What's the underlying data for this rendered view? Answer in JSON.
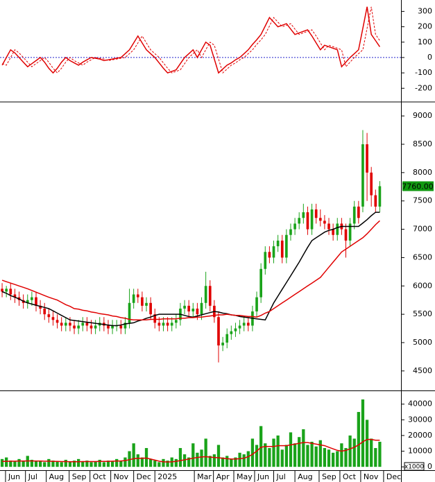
{
  "x_axis": {
    "xlim": [
      -0.5,
      94
    ],
    "xticks": [
      {
        "value": 0.8,
        "label": "Jun"
      },
      {
        "value": 5.5,
        "label": "Jul"
      },
      {
        "value": 10.4,
        "label": "Aug"
      },
      {
        "value": 15.8,
        "label": "Sep"
      },
      {
        "value": 20.7,
        "label": "Oct"
      },
      {
        "value": 25.6,
        "label": "Nov"
      },
      {
        "value": 31,
        "label": "Dec"
      },
      {
        "value": 36,
        "label": "2025"
      },
      {
        "value": 45.3,
        "label": "Mar"
      },
      {
        "value": 49.8,
        "label": "Apr"
      },
      {
        "value": 54.6,
        "label": "May"
      },
      {
        "value": 59.5,
        "label": "Jun"
      },
      {
        "value": 64,
        "label": "Jul"
      },
      {
        "value": 69,
        "label": "Aug"
      },
      {
        "value": 74.7,
        "label": "Sep"
      },
      {
        "value": 79.6,
        "label": "Oct"
      },
      {
        "value": 84.5,
        "label": "Nov"
      },
      {
        "value": 89.9,
        "label": "Dec"
      }
    ]
  },
  "chart_data": [
    {
      "type": "line",
      "ylim": [
        -280,
        365
      ],
      "yticks": [
        -200,
        -100,
        0,
        100,
        200,
        300
      ],
      "hline": 0,
      "hline_color": "#2222cc",
      "series": [
        {
          "color": "#e00000",
          "dash": false,
          "values": [
            -50,
            0,
            50,
            30,
            0,
            -30,
            -60,
            -40,
            -20,
            0,
            -30,
            -70,
            -100,
            -70,
            -30,
            0,
            -20,
            -35,
            -50,
            -30,
            -15,
            0,
            -5,
            -10,
            -20,
            -15,
            -10,
            -5,
            0,
            25,
            50,
            95,
            140,
            95,
            50,
            25,
            0,
            -35,
            -70,
            -100,
            -90,
            -80,
            -40,
            0,
            25,
            50,
            0,
            50,
            100,
            80,
            -10,
            -100,
            -75,
            -50,
            -35,
            -15,
            0,
            25,
            50,
            85,
            115,
            150,
            205,
            260,
            230,
            200,
            210,
            220,
            185,
            150,
            160,
            170,
            180,
            140,
            95,
            50,
            80,
            70,
            60,
            50,
            -60,
            -30,
            0,
            25,
            50,
            190,
            330,
            150,
            110,
            70
          ]
        },
        {
          "color": "#e00000",
          "dash": true,
          "values": [
            -40,
            -50,
            0,
            50,
            30,
            0,
            -30,
            -60,
            -40,
            -20,
            0,
            -30,
            -70,
            -100,
            -70,
            -30,
            0,
            -20,
            -35,
            -50,
            -30,
            -15,
            0,
            -5,
            -10,
            -20,
            -15,
            -10,
            -5,
            0,
            25,
            50,
            95,
            140,
            95,
            50,
            25,
            0,
            -35,
            -70,
            -100,
            -90,
            -80,
            -40,
            0,
            25,
            50,
            0,
            50,
            100,
            80,
            -10,
            -100,
            -75,
            -50,
            -35,
            -15,
            0,
            25,
            50,
            85,
            115,
            150,
            205,
            260,
            230,
            200,
            210,
            220,
            185,
            150,
            160,
            170,
            180,
            140,
            95,
            50,
            80,
            70,
            60,
            50,
            -60,
            -30,
            0,
            25,
            50,
            190,
            330,
            150,
            110
          ]
        }
      ]
    },
    {
      "type": "candlestick",
      "ylim": [
        4180,
        9210
      ],
      "yticks": [
        4500,
        5000,
        5500,
        6000,
        6500,
        7000,
        7500,
        8000,
        8500,
        9000
      ],
      "up_color": "#1aa31a",
      "down_color": "#e00000",
      "open": [
        5950,
        5900,
        5950,
        5850,
        5800,
        5750,
        5700,
        5750,
        5800,
        5650,
        5600,
        5500,
        5450,
        5400,
        5350,
        5300,
        5350,
        5300,
        5250,
        5300,
        5350,
        5300,
        5250,
        5300,
        5350,
        5300,
        5250,
        5300,
        5300,
        5250,
        5350,
        5700,
        5850,
        5800,
        5650,
        5700,
        5500,
        5350,
        5300,
        5350,
        5300,
        5350,
        5400,
        5600,
        5650,
        5550,
        5600,
        5500,
        5700,
        6000,
        5650,
        5450,
        4950,
        5000,
        5150,
        5200,
        5250,
        5300,
        5350,
        5300,
        5550,
        5800,
        6300,
        6600,
        6500,
        6700,
        6800,
        6500,
        6900,
        7000,
        7100,
        7200,
        7300,
        7000,
        7350,
        7200,
        7150,
        7100,
        7000,
        6900,
        7100,
        7000,
        6800,
        7100,
        7400,
        7400,
        8500,
        8000,
        7600,
        7400
      ],
      "high": [
        6050,
        6000,
        6050,
        5950,
        5900,
        5850,
        5850,
        5900,
        5900,
        5750,
        5700,
        5600,
        5550,
        5500,
        5450,
        5450,
        5450,
        5400,
        5400,
        5450,
        5450,
        5400,
        5400,
        5450,
        5450,
        5400,
        5400,
        5400,
        5400,
        5450,
        5950,
        5950,
        5950,
        5900,
        5800,
        5800,
        5600,
        5450,
        5450,
        5450,
        5450,
        5500,
        5700,
        5750,
        5750,
        5700,
        5700,
        5800,
        6250,
        6100,
        5750,
        5550,
        5100,
        5250,
        5300,
        5350,
        5400,
        5450,
        5450,
        5650,
        5900,
        6400,
        6700,
        6700,
        6800,
        6900,
        6900,
        7000,
        7100,
        7200,
        7300,
        7450,
        7400,
        7450,
        7450,
        7350,
        7250,
        7200,
        7100,
        7200,
        7200,
        7100,
        7200,
        7500,
        7500,
        8750,
        8700,
        8100,
        7700,
        7850
      ],
      "low": [
        5800,
        5800,
        5750,
        5700,
        5650,
        5600,
        5600,
        5650,
        5550,
        5500,
        5400,
        5350,
        5300,
        5250,
        5200,
        5200,
        5200,
        5150,
        5150,
        5200,
        5200,
        5150,
        5150,
        5200,
        5200,
        5150,
        5150,
        5200,
        5150,
        5150,
        5250,
        5600,
        5700,
        5550,
        5550,
        5400,
        5250,
        5200,
        5200,
        5200,
        5200,
        5250,
        5300,
        5500,
        5450,
        5450,
        5400,
        5400,
        5600,
        5550,
        5350,
        4650,
        4850,
        4900,
        5050,
        5100,
        5150,
        5200,
        5200,
        5200,
        5450,
        5700,
        6200,
        6400,
        6400,
        6600,
        6400,
        6400,
        6800,
        6900,
        7000,
        7100,
        6900,
        6900,
        7100,
        7050,
        7000,
        6900,
        6800,
        6800,
        6900,
        6500,
        6700,
        7000,
        7100,
        7300,
        7500,
        7400,
        7300,
        7300
      ],
      "close": [
        5900,
        5950,
        5850,
        5800,
        5750,
        5700,
        5750,
        5800,
        5650,
        5600,
        5500,
        5450,
        5400,
        5350,
        5300,
        5350,
        5300,
        5250,
        5300,
        5350,
        5300,
        5250,
        5300,
        5350,
        5300,
        5250,
        5300,
        5300,
        5250,
        5350,
        5700,
        5850,
        5800,
        5650,
        5700,
        5500,
        5350,
        5300,
        5350,
        5300,
        5350,
        5400,
        5600,
        5650,
        5550,
        5600,
        5500,
        5700,
        6000,
        5650,
        5450,
        4950,
        5000,
        5150,
        5200,
        5250,
        5300,
        5350,
        5300,
        5550,
        5800,
        6300,
        6600,
        6500,
        6700,
        6800,
        6500,
        6900,
        7000,
        7100,
        7200,
        7300,
        7000,
        7350,
        7200,
        7150,
        7100,
        7000,
        6900,
        7100,
        7000,
        6800,
        7100,
        7400,
        7200,
        8500,
        8000,
        7600,
        7400,
        7760
      ],
      "last_close_label": "7760.00",
      "last_close_color": "#119911",
      "series": [
        {
          "color": "#000000",
          "values": [
            5900,
            5870,
            5830,
            5800,
            5770,
            5730,
            5700,
            5680,
            5660,
            5640,
            5620,
            5600,
            5560,
            5520,
            5480,
            5440,
            5400,
            5390,
            5380,
            5370,
            5360,
            5350,
            5340,
            5330,
            5320,
            5310,
            5300,
            5300,
            5310,
            5330,
            5340,
            5350,
            5380,
            5400,
            5430,
            5450,
            5480,
            5500,
            5500,
            5500,
            5500,
            5500,
            5500,
            5480,
            5460,
            5450,
            5470,
            5490,
            5510,
            5530,
            5550,
            5540,
            5520,
            5510,
            5490,
            5480,
            5460,
            5450,
            5440,
            5430,
            5420,
            5410,
            5400,
            5550,
            5700,
            5820,
            5940,
            6060,
            6180,
            6300,
            6420,
            6550,
            6680,
            6800,
            6850,
            6900,
            6950,
            6980,
            7000,
            7030,
            7050,
            7050,
            7050,
            7050,
            7050,
            7110,
            7170,
            7240,
            7300,
            7300
          ]
        },
        {
          "color": "#e00000",
          "values": [
            6100,
            6075,
            6050,
            6025,
            6000,
            5975,
            5950,
            5920,
            5890,
            5860,
            5830,
            5800,
            5775,
            5750,
            5710,
            5670,
            5640,
            5600,
            5590,
            5570,
            5560,
            5540,
            5530,
            5510,
            5500,
            5490,
            5470,
            5460,
            5440,
            5430,
            5410,
            5400,
            5400,
            5400,
            5400,
            5410,
            5410,
            5410,
            5420,
            5420,
            5420,
            5420,
            5430,
            5430,
            5440,
            5440,
            5450,
            5450,
            5460,
            5470,
            5480,
            5490,
            5490,
            5500,
            5490,
            5480,
            5480,
            5470,
            5460,
            5460,
            5450,
            5480,
            5520,
            5550,
            5600,
            5650,
            5700,
            5750,
            5800,
            5850,
            5900,
            5950,
            6000,
            6050,
            6100,
            6150,
            6240,
            6330,
            6420,
            6510,
            6600,
            6650,
            6700,
            6750,
            6800,
            6850,
            6920,
            7000,
            7080,
            7150
          ]
        }
      ]
    },
    {
      "type": "bar",
      "ylim": [
        -1700,
        47400
      ],
      "yticks": [
        0,
        10000,
        20000,
        30000,
        40000
      ],
      "color": "#1aa31a",
      "unit_label": "x1000",
      "values": [
        5000,
        6000,
        4000,
        3500,
        5000,
        4000,
        7000,
        4500,
        3500,
        4000,
        3000,
        5000,
        4000,
        3500,
        3000,
        4500,
        3000,
        4000,
        5000,
        3500,
        4000,
        3000,
        3500,
        4500,
        3000,
        4000,
        3500,
        5000,
        4000,
        6000,
        10000,
        15000,
        8000,
        6000,
        12000,
        5000,
        4000,
        3000,
        5000,
        4000,
        6000,
        5000,
        12000,
        8000,
        6000,
        15000,
        9000,
        11000,
        18000,
        7000,
        8000,
        14000,
        6000,
        7000,
        5000,
        6000,
        9000,
        8000,
        10000,
        18000,
        14000,
        26000,
        15000,
        12000,
        18000,
        20000,
        11000,
        14000,
        22000,
        15000,
        19000,
        24000,
        14000,
        16000,
        13000,
        17000,
        12000,
        11000,
        9000,
        10000,
        15000,
        12000,
        20000,
        18000,
        35000,
        43000,
        30000,
        18000,
        12000,
        16000
      ],
      "series": [
        {
          "color": "#e00000",
          "values": [
            3500,
            3500,
            3600,
            3600,
            3700,
            3700,
            3800,
            3800,
            3700,
            3700,
            3600,
            3600,
            3500,
            3500,
            3400,
            3400,
            3300,
            3300,
            3300,
            3400,
            3400,
            3400,
            3400,
            3500,
            3500,
            3500,
            3600,
            3700,
            3800,
            4000,
            4600,
            5200,
            5400,
            5500,
            5600,
            5000,
            4300,
            3600,
            3200,
            3100,
            3200,
            3500,
            4000,
            4500,
            5000,
            5500,
            6000,
            6300,
            6500,
            6200,
            6000,
            5800,
            5500,
            5200,
            5000,
            5000,
            5200,
            5500,
            6500,
            8000,
            10000,
            12500,
            13000,
            13000,
            13000,
            13500,
            13500,
            13500,
            14000,
            14500,
            15000,
            15500,
            15500,
            15000,
            14500,
            14000,
            13500,
            12500,
            11500,
            10500,
            10000,
            10500,
            11500,
            12500,
            14000,
            16000,
            17500,
            17500,
            17000,
            17000
          ]
        }
      ]
    }
  ]
}
